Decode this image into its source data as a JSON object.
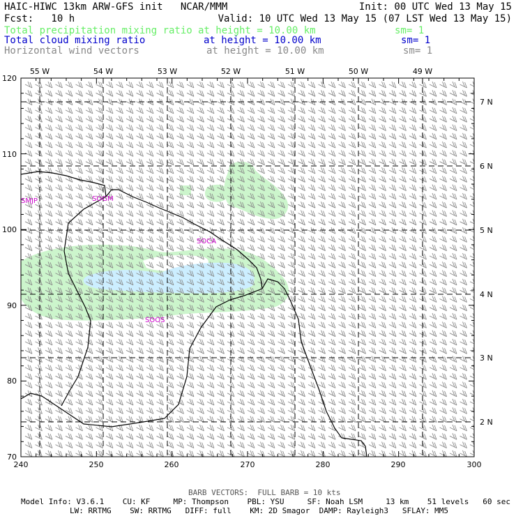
{
  "header": {
    "line1_left": "HAIC-HIWC 13km ARW-GFS init   NCAR/MMM",
    "line1_right": "Init: 00 UTC Wed 13 May 15",
    "line2_left": "Fcst:   10 h",
    "line2_right": "Valid: 10 UTC Wed 13 May 15 (07 LST Wed 13 May 15)",
    "field1_name": "Total precipitation mixing ratio",
    "field1_height": "at height = 10.00 km",
    "field1_sm": "sm= 1",
    "field2_name": "Total cloud mixing ratio",
    "field2_height": "at height = 10.00 km",
    "field2_sm": "sm= 1",
    "field3_name": "Horizontal wind vectors",
    "field3_height": "at height = 10.00 km",
    "field3_sm": "sm= 1"
  },
  "colors": {
    "field1": "#66ee66",
    "field2": "#0000cc",
    "field3": "#888888",
    "precip_fill": "#ccf5cc",
    "cloud_fill": "#cceeff",
    "barb": "#888888",
    "station": "#cc00cc"
  },
  "map": {
    "x_ticks": [
      "240",
      "250",
      "260",
      "270",
      "280",
      "290",
      "300"
    ],
    "y_ticks": [
      "70",
      "80",
      "90",
      "100",
      "110",
      "120"
    ],
    "lon_labels": [
      "55 W",
      "54 W",
      "53 W",
      "52 W",
      "51 W",
      "50 W",
      "49 W"
    ],
    "lat_labels": [
      "2 N",
      "3 N",
      "4 N",
      "5 N",
      "6 N",
      "7 N"
    ],
    "stations": [
      {
        "name": "SMJP"
      },
      {
        "name": "SOGM"
      },
      {
        "name": "SOCA"
      },
      {
        "name": "SOOS"
      }
    ]
  },
  "footer": {
    "barb_note": "BARB VECTORS:  FULL BARB = 10 kts",
    "model_line1": "Model Info: V3.6.1    CU: KF     MP: Thompson    PBL: YSU     SF: Noah LSM     13 km    51 levels   60 sec",
    "model_line2": "LW: RRTMG    SW: RRTMG   DIFF: full    KM: 2D Smagor  DAMP: Rayleigh3   SFLAY: MM5"
  }
}
